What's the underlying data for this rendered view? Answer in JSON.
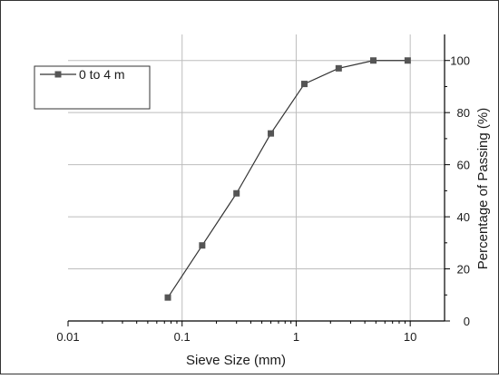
{
  "chart_data": {
    "type": "line",
    "xscale": "log",
    "xlim": [
      0.01,
      20
    ],
    "ylim": [
      0,
      110
    ],
    "x_ticks": [
      0.01,
      0.1,
      1,
      10
    ],
    "x_tick_labels": [
      "0.01",
      "0.1",
      "1",
      "10"
    ],
    "y_ticks": [
      0,
      20,
      40,
      60,
      80,
      100
    ],
    "y_tick_labels": [
      "0",
      "20",
      "40",
      "60",
      "80",
      "100"
    ],
    "y_axis_side": "right",
    "grid": true,
    "xlabel": "Sieve Size (mm)",
    "ylabel": "Percentage of Passing (%)",
    "legend_position": "top-left",
    "series": [
      {
        "name": "0 to 4 m",
        "color": "#555555",
        "marker": "square",
        "x": [
          0.075,
          0.15,
          0.3,
          0.6,
          1.18,
          2.36,
          4.75,
          9.5
        ],
        "y": [
          9,
          29,
          49,
          72,
          91,
          97,
          100,
          100
        ]
      }
    ]
  }
}
